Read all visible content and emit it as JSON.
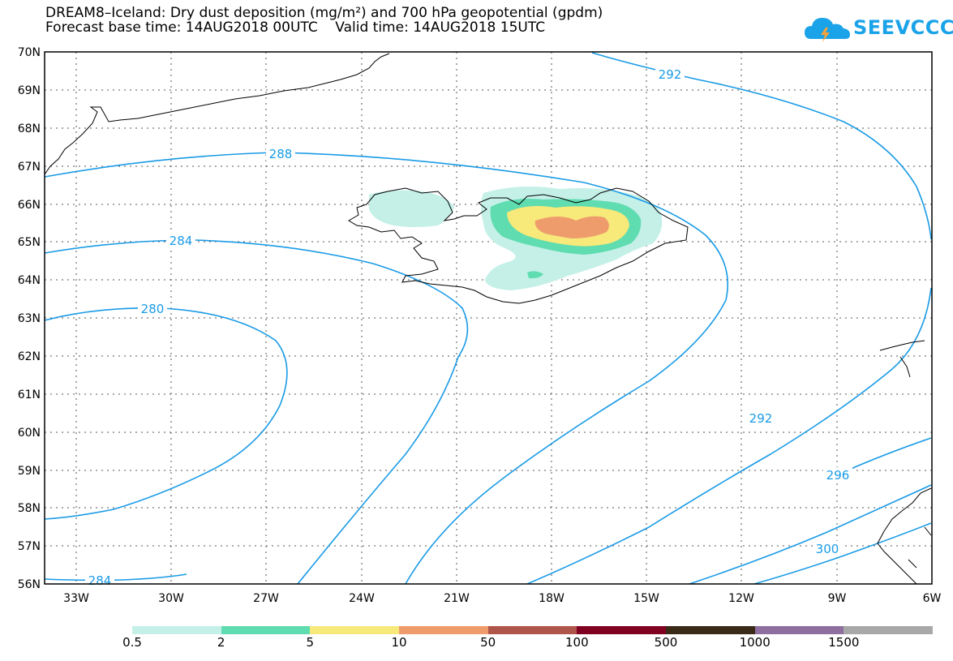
{
  "title": {
    "line1": "DREAM8–Iceland: Dry dust deposition (mg/m²) and 700 hPa geopotential (gpdm)",
    "line2": "Forecast base time: 14AUG2018 00UTC    Valid time: 14AUG2018 15UTC"
  },
  "logo": {
    "text": "SEEVCCC",
    "color": "#1aa3e8"
  },
  "map": {
    "lat_labels": [
      "70N",
      "69N",
      "68N",
      "67N",
      "66N",
      "65N",
      "64N",
      "63N",
      "62N",
      "61N",
      "60N",
      "59N",
      "58N",
      "57N",
      "56N"
    ],
    "lon_labels": [
      "33W",
      "30W",
      "27W",
      "24W",
      "21W",
      "18W",
      "15W",
      "12W",
      "9W",
      "6W"
    ],
    "contour_color": "#1a9be6",
    "contour_labels": [
      "292",
      "288",
      "284",
      "280",
      "292",
      "296",
      "300",
      "284"
    ],
    "coastline_color": "#000000"
  },
  "legend": {
    "labels": [
      "0.5",
      "2",
      "5",
      "10",
      "50",
      "100",
      "500",
      "1000",
      "1500"
    ],
    "colors": [
      "#c4f0e8",
      "#5fdcb0",
      "#f7e97a",
      "#ee9c6c",
      "#b0554a",
      "#800022",
      "#3a2a18",
      "#8e6fa0",
      "#a8a8a8"
    ]
  }
}
